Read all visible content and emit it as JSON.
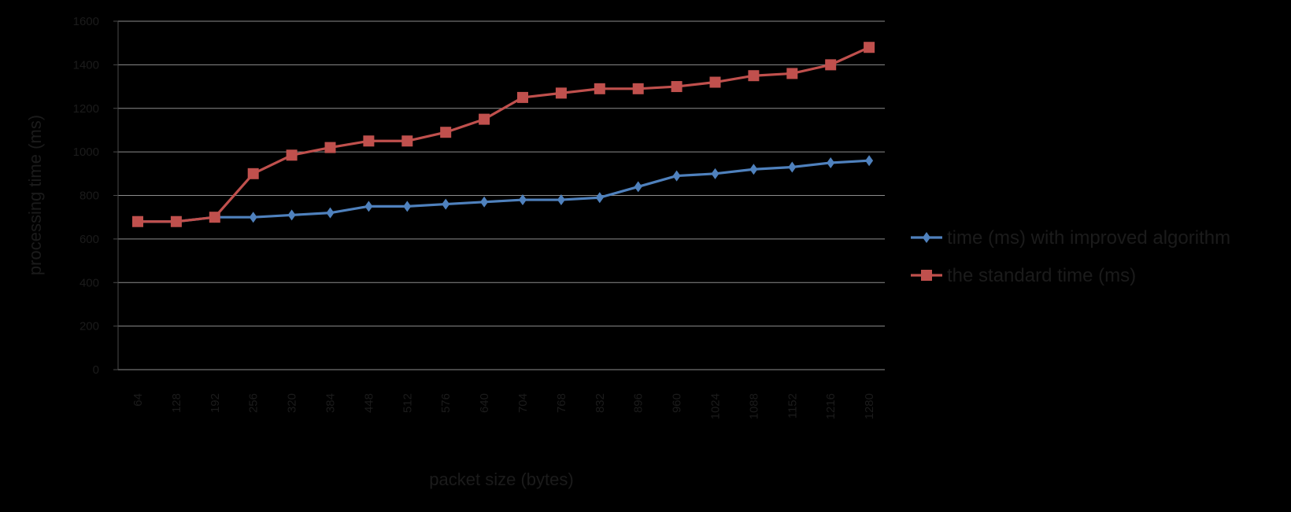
{
  "chart_data": {
    "type": "line",
    "title": "",
    "xlabel": "packet size (bytes)",
    "ylabel": "processing time (ms)",
    "ylim": [
      0,
      1600
    ],
    "yticks": [
      0,
      200,
      400,
      600,
      800,
      1000,
      1200,
      1400,
      1600
    ],
    "grid": true,
    "legend_position": "right",
    "categories": [
      "64",
      "128",
      "192",
      "256",
      "320",
      "384",
      "448",
      "512",
      "576",
      "640",
      "704",
      "768",
      "832",
      "896",
      "960",
      "1024",
      "1088",
      "1152",
      "1216",
      "1280"
    ],
    "series": [
      {
        "name": "time (ms) with improved algorithm",
        "color": "#4f81bd",
        "marker": "diamond",
        "values": [
          680,
          680,
          700,
          700,
          710,
          720,
          750,
          750,
          760,
          770,
          780,
          780,
          790,
          840,
          890,
          900,
          920,
          930,
          950,
          960
        ]
      },
      {
        "name": "the standard time (ms)",
        "color": "#c0504d",
        "marker": "square",
        "values": [
          680,
          680,
          700,
          900,
          985,
          1020,
          1050,
          1050,
          1090,
          1150,
          1250,
          1270,
          1290,
          1290,
          1300,
          1320,
          1350,
          1360,
          1400,
          1480
        ]
      }
    ]
  }
}
